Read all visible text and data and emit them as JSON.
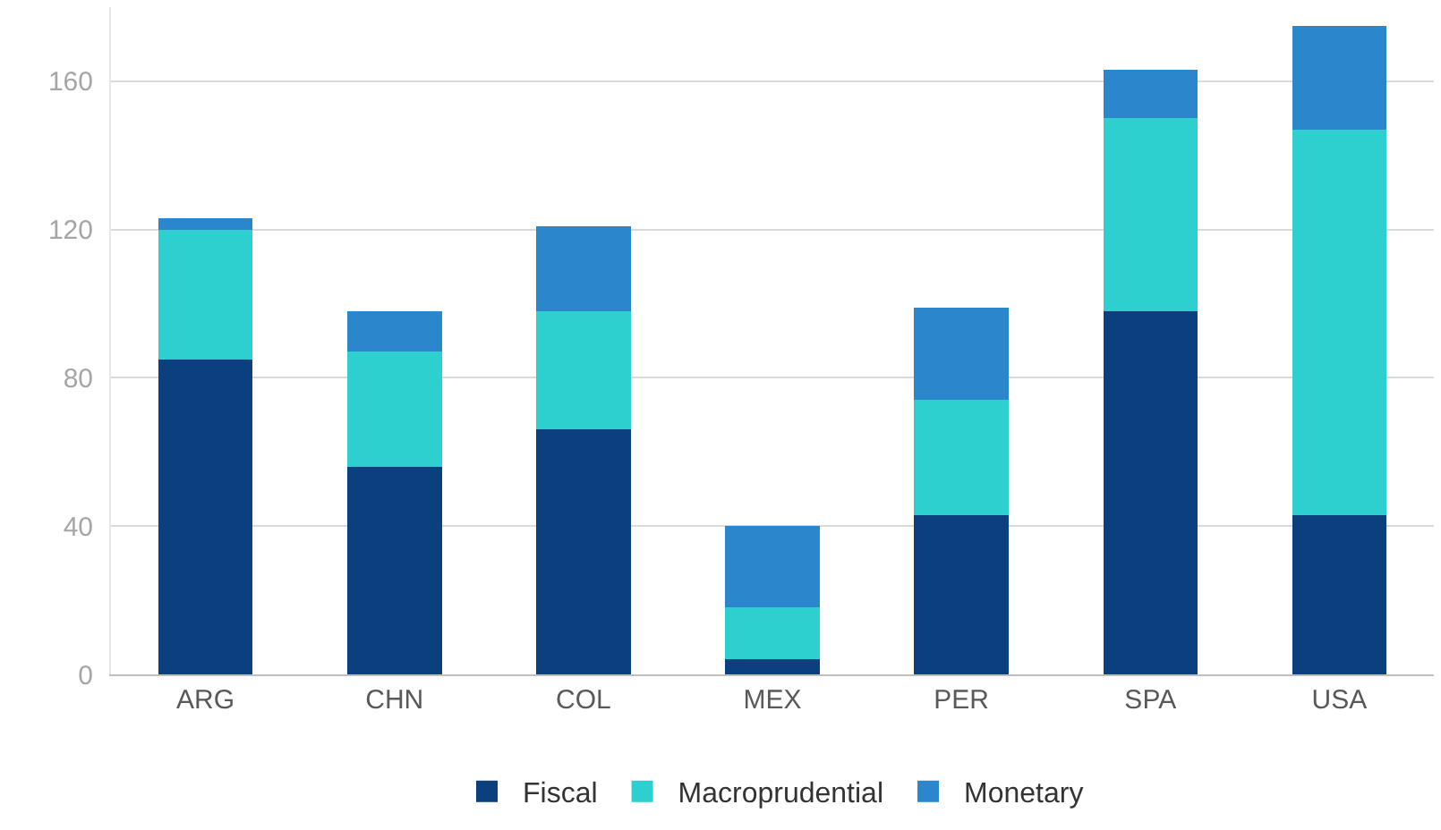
{
  "chart_data": {
    "type": "bar",
    "stacked": true,
    "categories": [
      "ARG",
      "CHN",
      "COL",
      "MEX",
      "PER",
      "SPA",
      "USA"
    ],
    "series": [
      {
        "name": "Fiscal",
        "color": "#0b3f7e",
        "values": [
          85,
          56,
          66,
          4,
          43,
          98,
          43
        ]
      },
      {
        "name": "Macroprudential",
        "color": "#2ecfcf",
        "values": [
          35,
          31,
          32,
          14,
          31,
          52,
          104
        ]
      },
      {
        "name": "Monetary",
        "color": "#2b86cb",
        "values": [
          3,
          11,
          23,
          22,
          25,
          13,
          28
        ]
      }
    ],
    "ylim": [
      0,
      180
    ],
    "yticks": [
      0,
      40,
      80,
      120,
      160
    ],
    "grid": "y",
    "legend": "bottom"
  }
}
